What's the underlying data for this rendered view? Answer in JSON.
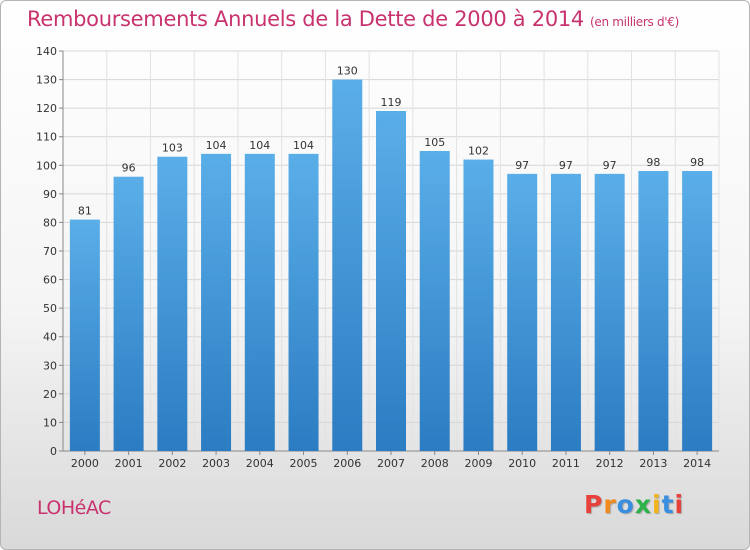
{
  "header": {
    "title": "Remboursements Annuels de la Dette de 2000 à 2014",
    "subtitle": "(en milliers d'€)"
  },
  "footer": {
    "town": "LOHéAC",
    "logo_text": "Proxiti"
  },
  "colors": {
    "bar": "#4a9ad8",
    "title": "#c8336f",
    "logo_letters": [
      "#e8403a",
      "#f08a1c",
      "#3a8ee0",
      "#2db34a",
      "#f3b51a",
      "#3a8ee0",
      "#e8403a"
    ]
  },
  "chart_data": {
    "type": "bar",
    "title": "Remboursements Annuels de la Dette de 2000 à 2014",
    "subtitle": "(en milliers d'€)",
    "categories": [
      "2000",
      "2001",
      "2002",
      "2003",
      "2004",
      "2005",
      "2006",
      "2007",
      "2008",
      "2009",
      "2010",
      "2011",
      "2012",
      "2013",
      "2014"
    ],
    "values": [
      81,
      96,
      103,
      104,
      104,
      104,
      130,
      119,
      105,
      102,
      97,
      97,
      97,
      98,
      98
    ],
    "xlabel": "",
    "ylabel": "",
    "ylim": [
      0,
      140
    ],
    "yticks": [
      0,
      10,
      20,
      30,
      40,
      50,
      60,
      70,
      80,
      90,
      100,
      110,
      120,
      130,
      140
    ],
    "grid": true,
    "data_labels": true
  }
}
